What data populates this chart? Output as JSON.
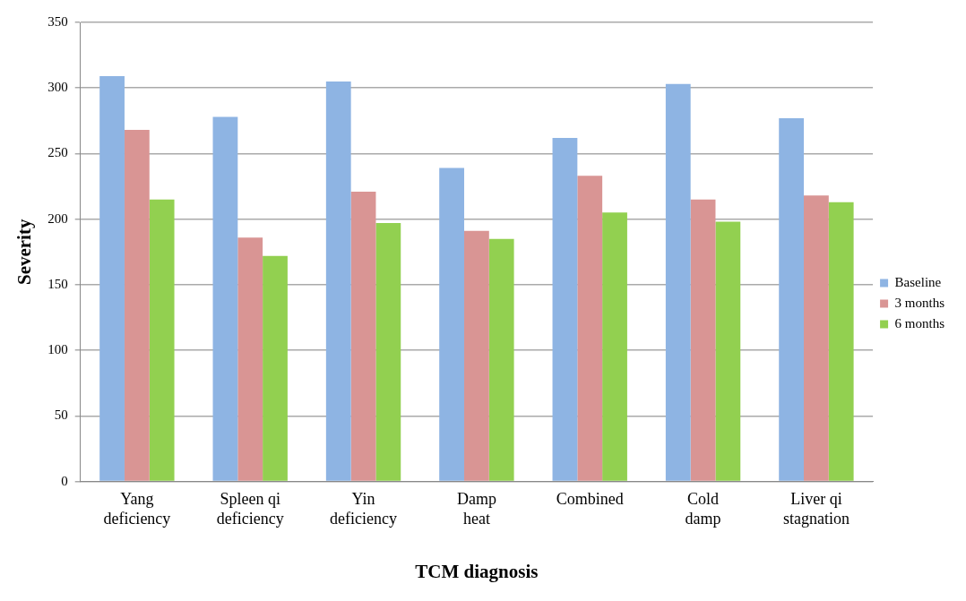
{
  "chart_data": {
    "type": "bar",
    "xlabel": "TCM diagnosis",
    "ylabel": "Severity",
    "categories": [
      "Yang deficiency",
      "Spleen qi deficiency",
      "Yin deficiency",
      "Damp heat",
      "Combined",
      "Cold damp",
      "Liver qi stagnation"
    ],
    "series": [
      {
        "name": "Baseline",
        "color": "#8eb4e3",
        "values": [
          309,
          278,
          305,
          239,
          262,
          303,
          277
        ]
      },
      {
        "name": "3 months",
        "color": "#d99594",
        "values": [
          268,
          186,
          221,
          191,
          233,
          215,
          218
        ]
      },
      {
        "name": "6 months",
        "color": "#92d050",
        "values": [
          215,
          172,
          197,
          185,
          205,
          198,
          213
        ]
      }
    ],
    "ylim": [
      0,
      350
    ],
    "yticks": [
      0,
      50,
      100,
      150,
      200,
      250,
      300,
      350
    ],
    "grid": "y",
    "legend": "right"
  }
}
